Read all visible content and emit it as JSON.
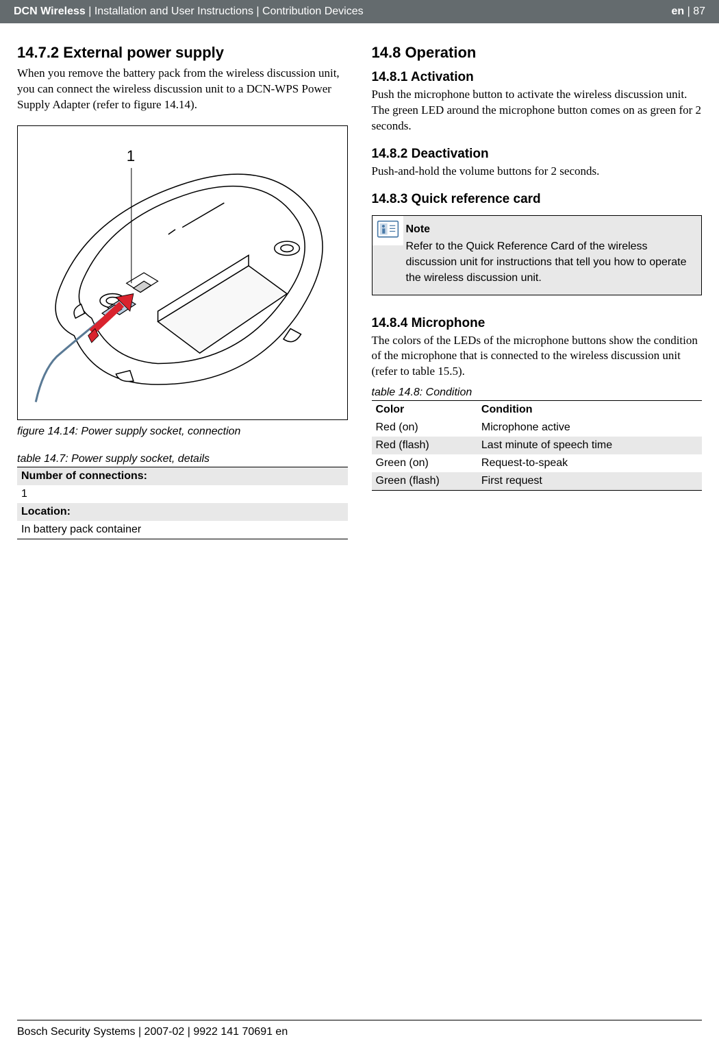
{
  "header": {
    "product": "DCN Wireless",
    "breadcrumb": " | Installation and User Instructions | Contribution Devices",
    "lang": "en",
    "page": "87"
  },
  "left": {
    "sec1_num": "14.7.2",
    "sec1_title": "   External power supply",
    "sec1_body": "When you remove the battery pack from the wireless discussion unit, you can connect the wireless discussion unit to a DCN-WPS Power Supply Adapter (refer to figure 14.14).",
    "figure_label": "1",
    "figure_caption": "figure 14.14: Power supply socket, connection",
    "table_caption": "table 14.7: Power supply socket, details",
    "table_rows": [
      {
        "label": "Number of connections:",
        "shaded": true
      },
      {
        "label": "1",
        "shaded": false
      },
      {
        "label": "Location:",
        "shaded": true
      },
      {
        "label": "In battery pack container",
        "shaded": false
      }
    ]
  },
  "right": {
    "h2_num": "14.8",
    "h2_title": "    Operation",
    "sec1_num": "14.8.1",
    "sec1_title": "   Activation",
    "sec1_body": "Push the microphone button to activate the wireless discussion unit. The green LED around the microphone button comes on as green for 2 seconds.",
    "sec2_num": "14.8.2",
    "sec2_title": "   Deactivation",
    "sec2_body": "Push-and-hold the volume buttons for 2 seconds.",
    "sec3_num": "14.8.3",
    "sec3_title": "   Quick reference card",
    "note_title": "Note",
    "note_body": "Refer to the Quick Reference Card of the wireless discussion unit for instructions that tell you how to operate the wireless discussion unit.",
    "sec4_num": "14.8.4",
    "sec4_title": "   Microphone",
    "sec4_body": "The colors of the LEDs of the microphone buttons show the condition of the microphone that is connected to the wireless discussion unit (refer to table 15.5).",
    "table_caption": "table 14.8: Condition",
    "table_headers": [
      "Color",
      "Condition"
    ],
    "table_rows": [
      {
        "c0": "Red (on)",
        "c1": "Microphone active",
        "shaded": false
      },
      {
        "c0": "Red (flash)",
        "c1": "Last minute of speech time",
        "shaded": true
      },
      {
        "c0": "Green (on)",
        "c1": "Request-to-speak",
        "shaded": false
      },
      {
        "c0": "Green (flash)",
        "c1": "First request",
        "shaded": true
      }
    ]
  },
  "footer": "Bosch Security Systems | 2007-02 | 9922 141 70691 en",
  "colors": {
    "header_bg": "#646b6e",
    "shaded": "#e8e8e8",
    "arrow": "#d9232e"
  }
}
